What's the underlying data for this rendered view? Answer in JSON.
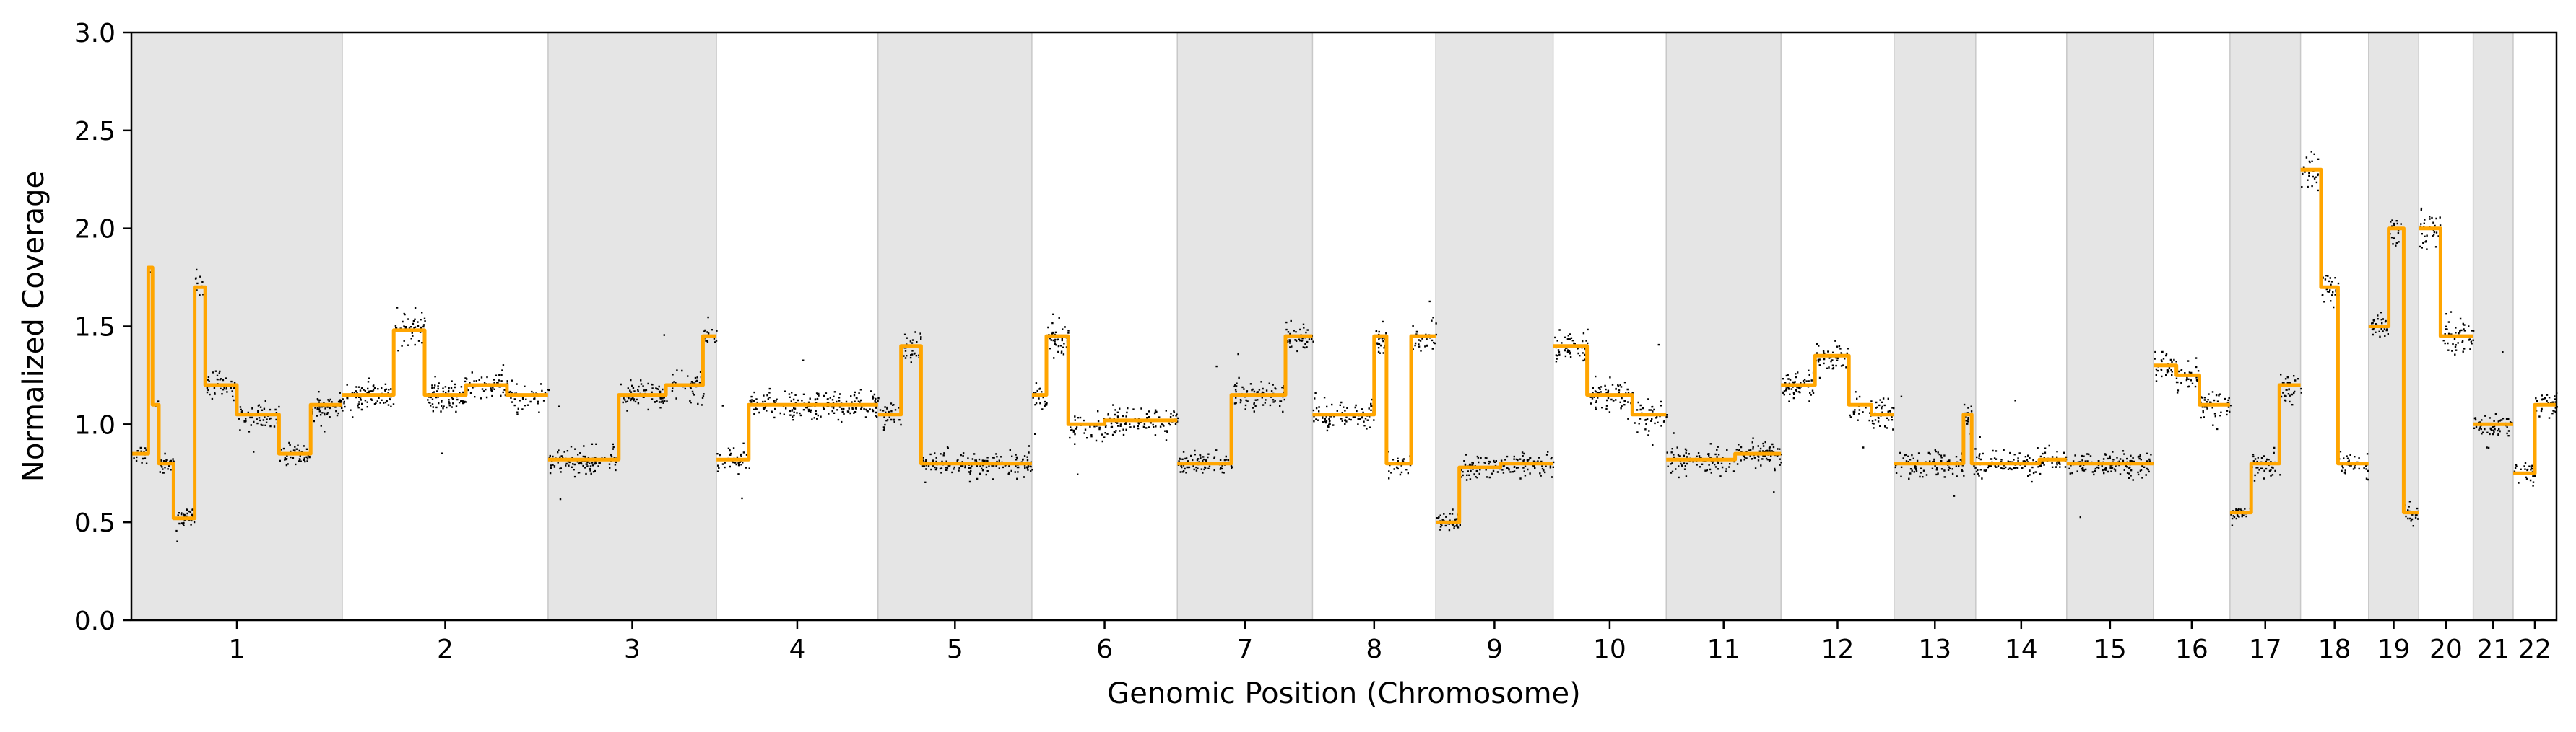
{
  "chart_data": {
    "type": "scatter",
    "title": "",
    "xlabel": "Genomic Position (Chromosome)",
    "ylabel": "Normalized Coverage",
    "ylim": [
      0,
      3.0
    ],
    "yticks": [
      0.0,
      0.5,
      1.0,
      1.5,
      2.0,
      2.5,
      3.0
    ],
    "ytick_labels": [
      "0.0",
      "0.5",
      "1.0",
      "1.5",
      "2.0",
      "2.5",
      "3.0"
    ],
    "grid": false,
    "legend": "none",
    "colors": {
      "points": "#000000",
      "segments": "#ffa500",
      "shade": "#e5e5e5"
    },
    "chromosomes": [
      {
        "label": "1",
        "size": 248,
        "shaded": true,
        "segments": [
          [
            0.0,
            0.85
          ],
          [
            0.08,
            1.8
          ],
          [
            0.1,
            1.1
          ],
          [
            0.13,
            0.8
          ],
          [
            0.2,
            0.52
          ],
          [
            0.3,
            1.7
          ],
          [
            0.35,
            1.2
          ],
          [
            0.5,
            1.05
          ],
          [
            0.7,
            0.85
          ],
          [
            0.85,
            1.1
          ]
        ]
      },
      {
        "label": "2",
        "size": 242,
        "shaded": false,
        "segments": [
          [
            0.0,
            1.15
          ],
          [
            0.25,
            1.48
          ],
          [
            0.4,
            1.15
          ],
          [
            0.6,
            1.2
          ],
          [
            0.8,
            1.15
          ]
        ]
      },
      {
        "label": "3",
        "size": 198,
        "shaded": true,
        "segments": [
          [
            0.0,
            0.82
          ],
          [
            0.42,
            1.15
          ],
          [
            0.7,
            1.2
          ],
          [
            0.92,
            1.45
          ]
        ]
      },
      {
        "label": "4",
        "size": 190,
        "shaded": false,
        "segments": [
          [
            0.0,
            0.82
          ],
          [
            0.2,
            1.1
          ]
        ]
      },
      {
        "label": "5",
        "size": 181,
        "shaded": true,
        "segments": [
          [
            0.0,
            1.05
          ],
          [
            0.15,
            1.4
          ],
          [
            0.28,
            0.8
          ]
        ]
      },
      {
        "label": "6",
        "size": 171,
        "shaded": false,
        "segments": [
          [
            0.0,
            1.15
          ],
          [
            0.1,
            1.45
          ],
          [
            0.25,
            1.0
          ],
          [
            0.5,
            1.02
          ]
        ]
      },
      {
        "label": "7",
        "size": 159,
        "shaded": true,
        "segments": [
          [
            0.0,
            0.8
          ],
          [
            0.4,
            1.15
          ],
          [
            0.8,
            1.45
          ]
        ]
      },
      {
        "label": "8",
        "size": 145,
        "shaded": false,
        "segments": [
          [
            0.0,
            1.05
          ],
          [
            0.5,
            1.45
          ],
          [
            0.6,
            0.8
          ],
          [
            0.8,
            1.45
          ]
        ]
      },
      {
        "label": "9",
        "size": 138,
        "shaded": true,
        "segments": [
          [
            0.0,
            0.5
          ],
          [
            0.2,
            0.78
          ],
          [
            0.55,
            0.8
          ]
        ]
      },
      {
        "label": "10",
        "size": 133,
        "shaded": false,
        "segments": [
          [
            0.0,
            1.4
          ],
          [
            0.3,
            1.15
          ],
          [
            0.7,
            1.05
          ]
        ]
      },
      {
        "label": "11",
        "size": 135,
        "shaded": true,
        "segments": [
          [
            0.0,
            0.82
          ],
          [
            0.6,
            0.85
          ]
        ]
      },
      {
        "label": "12",
        "size": 133,
        "shaded": false,
        "segments": [
          [
            0.0,
            1.2
          ],
          [
            0.3,
            1.35
          ],
          [
            0.6,
            1.1
          ],
          [
            0.8,
            1.05
          ]
        ]
      },
      {
        "label": "13",
        "size": 96,
        "shaded": true,
        "segments": [
          [
            0.0,
            0.8
          ],
          [
            0.85,
            1.05
          ],
          [
            0.95,
            0.8
          ]
        ]
      },
      {
        "label": "14",
        "size": 107,
        "shaded": false,
        "segments": [
          [
            0.0,
            0.8
          ],
          [
            0.7,
            0.82
          ]
        ]
      },
      {
        "label": "15",
        "size": 102,
        "shaded": true,
        "segments": [
          [
            0.0,
            0.8
          ]
        ]
      },
      {
        "label": "16",
        "size": 90,
        "shaded": false,
        "segments": [
          [
            0.0,
            1.3
          ],
          [
            0.3,
            1.25
          ],
          [
            0.6,
            1.1
          ]
        ]
      },
      {
        "label": "17",
        "size": 83,
        "shaded": true,
        "segments": [
          [
            0.0,
            0.55
          ],
          [
            0.3,
            0.8
          ],
          [
            0.7,
            1.2
          ]
        ]
      },
      {
        "label": "18",
        "size": 80,
        "shaded": false,
        "segments": [
          [
            0.0,
            2.3
          ],
          [
            0.3,
            1.7
          ],
          [
            0.55,
            0.8
          ]
        ]
      },
      {
        "label": "19",
        "size": 59,
        "shaded": true,
        "segments": [
          [
            0.0,
            1.5
          ],
          [
            0.4,
            2.0
          ],
          [
            0.7,
            0.55
          ]
        ]
      },
      {
        "label": "20",
        "size": 64,
        "shaded": false,
        "segments": [
          [
            0.0,
            2.0
          ],
          [
            0.4,
            1.45
          ]
        ]
      },
      {
        "label": "21",
        "size": 47,
        "shaded": true,
        "segments": [
          [
            0.0,
            1.0
          ]
        ]
      },
      {
        "label": "22",
        "size": 51,
        "shaded": false,
        "segments": [
          [
            0.0,
            0.75
          ],
          [
            0.5,
            1.1
          ]
        ]
      }
    ]
  }
}
